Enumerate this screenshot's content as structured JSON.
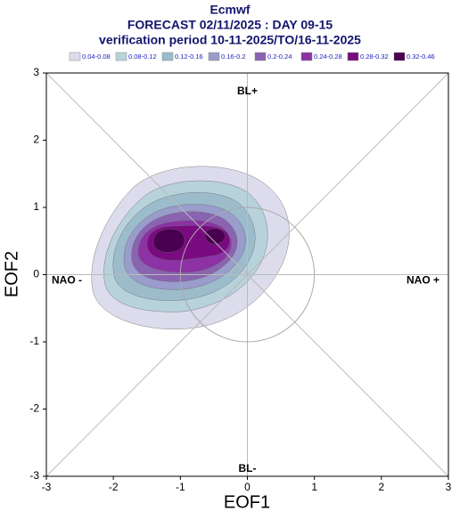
{
  "chart_data": {
    "type": "contour",
    "title": "Ecmwf",
    "subtitle": "FORECAST 02/11/2025 : DAY 09-15",
    "subtitle2": "verification period 10-11-2025/TO/16-11-2025",
    "legend": {
      "labels": [
        "0.04-0.08",
        "0.08-0.12",
        "0.12-0.16",
        "0.16-0.2",
        "0.2-0.24",
        "0.24-0.28",
        "0.28-0.32",
        "0.32-0.46"
      ],
      "colors": [
        "#dcdcec",
        "#b8d2dc",
        "#9cbccc",
        "#9a9ccc",
        "#8a64b0",
        "#8c32a4",
        "#7a0a80",
        "#4a0050"
      ]
    },
    "xlabel": "EOF1",
    "ylabel": "EOF2",
    "xlim": [
      -3,
      3
    ],
    "ylim": [
      -3,
      3
    ],
    "xticks": [
      -3,
      -2,
      -1,
      0,
      1,
      2,
      3
    ],
    "yticks": [
      -3,
      -2,
      -1,
      0,
      1,
      2,
      3
    ],
    "annotations": [
      "BL+",
      "BL-",
      "NAO -",
      "NAO +"
    ]
  }
}
